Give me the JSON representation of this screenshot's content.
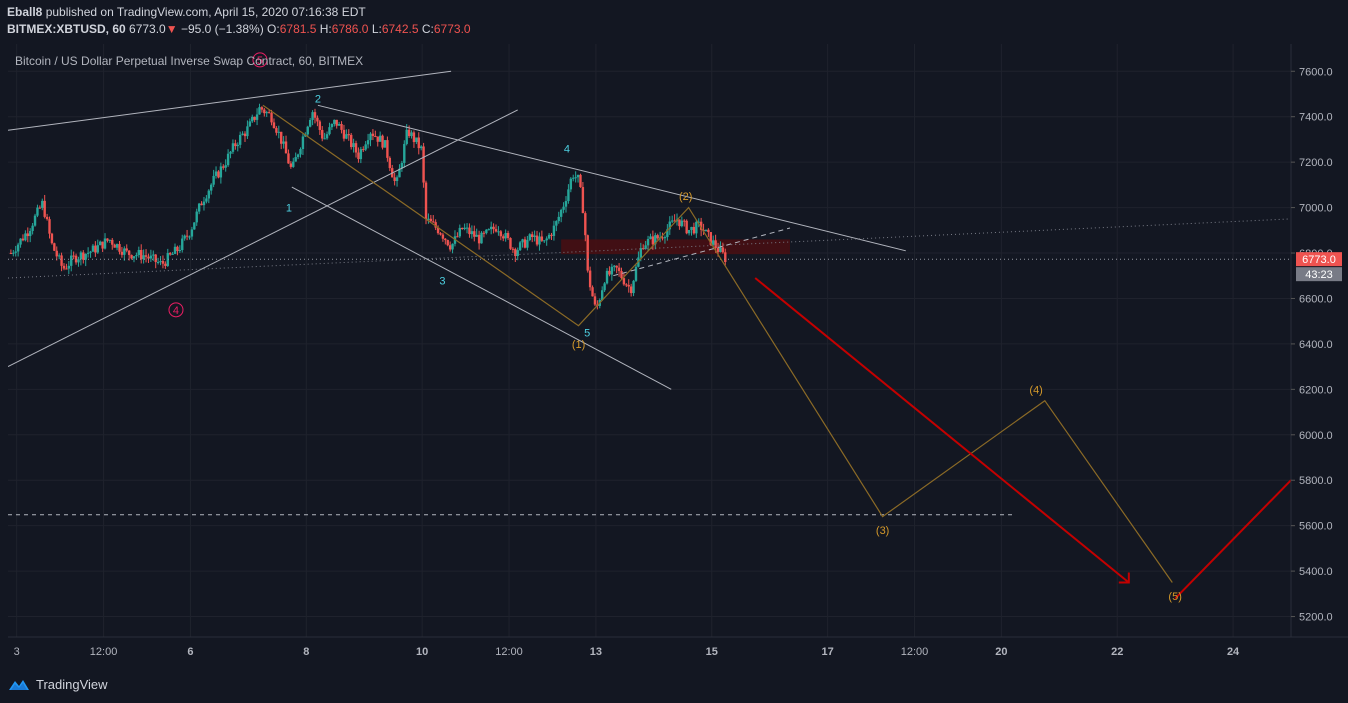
{
  "header": {
    "author": "Eball8",
    "published_text": "published on TradingView.com, April 15, 2020 07:16:38 EDT",
    "symbol": "BITMEX:XBTUSD, 60",
    "last_price": "6773.0",
    "change_arrow": "▼",
    "change": "−95.0 (−1.38%)",
    "ohlc": [
      {
        "label": "O:",
        "value": "6781.5"
      },
      {
        "label": "H:",
        "value": "6786.0"
      },
      {
        "label": "L:",
        "value": "6742.5"
      },
      {
        "label": "C:",
        "value": "6773.0"
      }
    ]
  },
  "footer": {
    "brand_name": "TradingView",
    "logo_icon": "tradingview-logo-icon"
  },
  "chart_data": {
    "type": "candlestick",
    "title": "Bitcoin / US Dollar Perpetual Inverse Swap Contract, 60, BITMEX",
    "price_axis": {
      "ticks": [
        5200,
        5400,
        5600,
        5800,
        6000,
        6200,
        6400,
        6600,
        6800,
        7000,
        7200,
        7400,
        7600
      ],
      "tick_labels": [
        "5200.0",
        "5400.0",
        "5600.0",
        "5800.0",
        "6000.0",
        "6200.0",
        "6400.0",
        "6600.0",
        "6800.0",
        "7000.0",
        "7200.0",
        "7400.0",
        "7600.0"
      ],
      "range": [
        5110,
        7720
      ]
    },
    "time_axis": {
      "labels": [
        "3",
        "12:00",
        "6",
        "8",
        "10",
        "12:00",
        "13",
        "15",
        "17",
        "12:00",
        "20",
        "22",
        "24"
      ],
      "label_days": [
        3.0,
        4.5,
        6.0,
        8.0,
        10.0,
        11.5,
        13.0,
        15.0,
        17.0,
        18.5,
        20.0,
        22.0,
        24.0
      ],
      "bold": [
        false,
        false,
        true,
        true,
        true,
        false,
        true,
        true,
        true,
        false,
        true,
        true,
        true
      ],
      "range_days": [
        2.85,
        25.0
      ]
    },
    "current_price": {
      "value": 6773.0,
      "label": "6773.0",
      "countdown": "43:23",
      "color": "#ef5350"
    },
    "price_path": [
      [
        2.9,
        6800
      ],
      [
        3.2,
        6900
      ],
      [
        3.45,
        7020
      ],
      [
        3.6,
        6840
      ],
      [
        3.8,
        6730
      ],
      [
        4.0,
        6780
      ],
      [
        4.3,
        6810
      ],
      [
        4.6,
        6860
      ],
      [
        4.9,
        6800
      ],
      [
        5.2,
        6790
      ],
      [
        5.5,
        6750
      ],
      [
        5.8,
        6820
      ],
      [
        6.0,
        6900
      ],
      [
        6.2,
        7030
      ],
      [
        6.4,
        7120
      ],
      [
        6.6,
        7200
      ],
      [
        6.8,
        7290
      ],
      [
        7.0,
        7350
      ],
      [
        7.2,
        7440
      ],
      [
        7.4,
        7400
      ],
      [
        7.55,
        7310
      ],
      [
        7.75,
        7160
      ],
      [
        7.9,
        7280
      ],
      [
        8.1,
        7430
      ],
      [
        8.3,
        7300
      ],
      [
        8.5,
        7380
      ],
      [
        8.7,
        7310
      ],
      [
        8.9,
        7230
      ],
      [
        9.1,
        7340
      ],
      [
        9.35,
        7280
      ],
      [
        9.55,
        7090
      ],
      [
        9.75,
        7340
      ],
      [
        10.0,
        7250
      ],
      [
        10.05,
        6950
      ],
      [
        10.3,
        6900
      ],
      [
        10.5,
        6830
      ],
      [
        10.7,
        6910
      ],
      [
        11.0,
        6860
      ],
      [
        11.3,
        6920
      ],
      [
        11.6,
        6810
      ],
      [
        11.9,
        6870
      ],
      [
        12.1,
        6840
      ],
      [
        12.3,
        6920
      ],
      [
        12.45,
        7020
      ],
      [
        12.6,
        7150
      ],
      [
        12.7,
        7120
      ],
      [
        12.8,
        6960
      ],
      [
        12.85,
        6720
      ],
      [
        13.0,
        6540
      ],
      [
        13.15,
        6690
      ],
      [
        13.35,
        6730
      ],
      [
        13.6,
        6640
      ],
      [
        13.8,
        6840
      ],
      [
        14.1,
        6870
      ],
      [
        14.4,
        6950
      ],
      [
        14.6,
        6900
      ],
      [
        14.8,
        6920
      ],
      [
        15.0,
        6850
      ],
      [
        15.25,
        6773
      ]
    ],
    "lines": [
      {
        "name": "upper-channel-line",
        "color": "#b2b5be",
        "width": 1,
        "points": [
          [
            2.85,
            7340
          ],
          [
            10.5,
            7600
          ]
        ]
      },
      {
        "name": "rising-trendline",
        "color": "#b2b5be",
        "width": 1,
        "points": [
          [
            2.85,
            6300
          ],
          [
            11.65,
            7430
          ]
        ]
      },
      {
        "name": "descending-resistance-line",
        "color": "#b2b5be",
        "width": 1,
        "points": [
          [
            8.2,
            7450
          ],
          [
            18.35,
            6810
          ]
        ]
      },
      {
        "name": "descending-support-line",
        "color": "#b2b5be",
        "width": 1,
        "points": [
          [
            7.75,
            7090
          ],
          [
            14.3,
            6200
          ]
        ]
      },
      {
        "name": "dotted-horizontal-line",
        "color": "#9598a1",
        "width": 1,
        "dash": "1 3",
        "points": [
          [
            2.85,
            6773
          ],
          [
            25.0,
            6773
          ]
        ]
      },
      {
        "name": "dotted-trend-line",
        "color": "#787b86",
        "width": 1,
        "dash": "1 3",
        "points": [
          [
            2.85,
            6690
          ],
          [
            25.0,
            6950
          ]
        ]
      },
      {
        "name": "dashed-projection-line",
        "color": "#b2b5be",
        "width": 1,
        "dash": "5 4",
        "points": [
          [
            13.3,
            6700
          ],
          [
            16.35,
            6910
          ]
        ]
      },
      {
        "name": "target-dashed-line",
        "color": "#b2b5be",
        "width": 1,
        "dash": "4 4",
        "points": [
          [
            2.85,
            5648
          ],
          [
            20.2,
            5648
          ]
        ]
      },
      {
        "name": "elliott-wave-path",
        "color": "#8b6a26",
        "width": 1.2,
        "points": [
          [
            7.25,
            7450
          ],
          [
            12.7,
            6480
          ],
          [
            14.6,
            7000
          ],
          [
            17.95,
            5640
          ],
          [
            20.75,
            6150
          ],
          [
            22.95,
            5350
          ]
        ]
      },
      {
        "name": "bearish-arrow-line",
        "color": "#c40000",
        "width": 2,
        "points": [
          [
            15.75,
            6690
          ],
          [
            22.2,
            5350
          ]
        ]
      },
      {
        "name": "rising-red-line",
        "color": "#c40000",
        "width": 2,
        "points": [
          [
            23.0,
            5280
          ],
          [
            25.0,
            5800
          ]
        ]
      }
    ],
    "zone": {
      "name": "supply-zone",
      "color": "#4a0e12",
      "opacity": 0.85,
      "from": [
        12.4,
        6860
      ],
      "to": [
        16.35,
        6795
      ]
    },
    "labels": [
      {
        "text": "5",
        "at": [
          7.2,
          7650
        ],
        "color": "#e91e63",
        "circle": true
      },
      {
        "text": "4",
        "at": [
          5.75,
          6550
        ],
        "color": "#e91e63",
        "circle": true
      },
      {
        "text": "2",
        "at": [
          8.2,
          7480
        ],
        "color": "#4dd0e1"
      },
      {
        "text": "1",
        "at": [
          7.7,
          7000
        ],
        "color": "#4dd0e1"
      },
      {
        "text": "3",
        "at": [
          10.35,
          6680
        ],
        "color": "#4dd0e1"
      },
      {
        "text": "4",
        "at": [
          12.5,
          7260
        ],
        "color": "#4dd0e1"
      },
      {
        "text": "5",
        "at": [
          12.85,
          6450
        ],
        "color": "#4dd0e1"
      },
      {
        "text": "(1)",
        "at": [
          12.7,
          6400
        ],
        "color": "#d69a2a"
      },
      {
        "text": "(2)",
        "at": [
          14.55,
          7050
        ],
        "color": "#d69a2a"
      },
      {
        "text": "(3)",
        "at": [
          17.95,
          5580
        ],
        "color": "#d69a2a"
      },
      {
        "text": "(4)",
        "at": [
          20.6,
          6200
        ],
        "color": "#d69a2a"
      },
      {
        "text": "(5)",
        "at": [
          23.0,
          5290
        ],
        "color": "#d69a2a"
      }
    ],
    "colors": {
      "background": "#131722",
      "grid": "#1f222d",
      "up": "#26a69a",
      "down": "#ef5350",
      "axis_text": "#b2b5be"
    }
  }
}
